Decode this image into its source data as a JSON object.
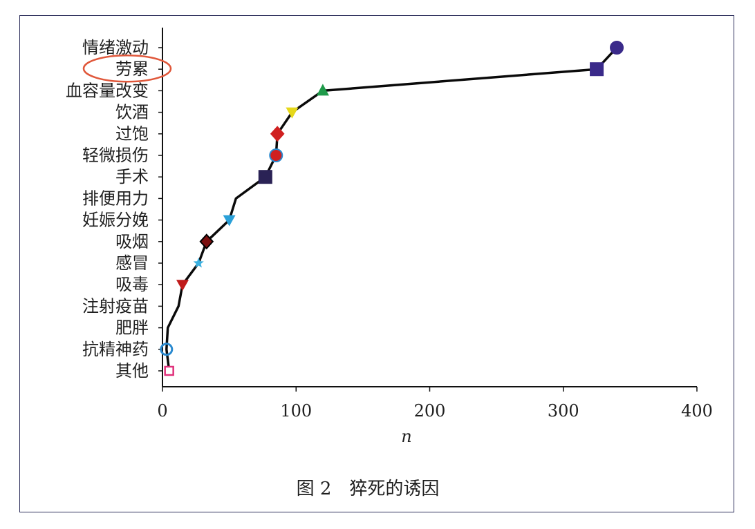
{
  "chart_data": {
    "type": "line",
    "caption": "图 2　猝死的诱因",
    "xlabel": "n",
    "ylabel": "",
    "xlim": [
      0,
      400
    ],
    "xticks": [
      0,
      100,
      200,
      300,
      400
    ],
    "categories": [
      "情绪激动",
      "劳累",
      "血容量改变",
      "饮酒",
      "过饱",
      "轻微损伤",
      "手术",
      "排便用力",
      "妊娠分娩",
      "吸烟",
      "感冒",
      "吸毒",
      "注射疫苗",
      "肥胖",
      "抗精神药",
      "其他"
    ],
    "highlighted_category": "劳累",
    "highlight_color": "#e0573a",
    "grid": false,
    "points": [
      {
        "category": "情绪激动",
        "x": 340,
        "marker": "circle",
        "color": "#3a2a8a"
      },
      {
        "category": "劳累",
        "x": 325,
        "marker": "square",
        "color": "#3a2a8a"
      },
      {
        "category": "血容量改变",
        "x": 120,
        "marker": "triangle-up",
        "color": "#1f9a4a"
      },
      {
        "category": "饮酒",
        "x": 97,
        "marker": "triangle-down",
        "color": "#e6d81a"
      },
      {
        "category": "过饱",
        "x": 86,
        "marker": "diamond",
        "color": "#d02020"
      },
      {
        "category": "轻微损伤",
        "x": 85,
        "marker": "circle",
        "color": "#d02020",
        "edge": "#2a8ad0"
      },
      {
        "category": "手术",
        "x": 77,
        "marker": "square",
        "color": "#2a2255"
      },
      {
        "category": "排便用力",
        "x": 55,
        "marker": "none",
        "color": "#000000"
      },
      {
        "category": "妊娠分娩",
        "x": 50,
        "marker": "triangle-down",
        "color": "#2aa0d8"
      },
      {
        "category": "吸烟",
        "x": 33,
        "marker": "diamond",
        "color": "#7a0f0f",
        "edge": "#000000"
      },
      {
        "category": "感冒",
        "x": 27,
        "marker": "star",
        "color": "#3ab0e0"
      },
      {
        "category": "吸毒",
        "x": 15,
        "marker": "triangle-down",
        "color": "#c01a1a"
      },
      {
        "category": "注射疫苗",
        "x": 12,
        "marker": "none",
        "color": "#000000"
      },
      {
        "category": "肥胖",
        "x": 4,
        "marker": "none",
        "color": "#000000"
      },
      {
        "category": "抗精神药",
        "x": 3,
        "marker": "circle-open",
        "color": "#2a8ad0"
      },
      {
        "category": "其他",
        "x": 5,
        "marker": "square-open",
        "color": "#e0307a"
      }
    ],
    "line_color": "#0a0a0a"
  }
}
